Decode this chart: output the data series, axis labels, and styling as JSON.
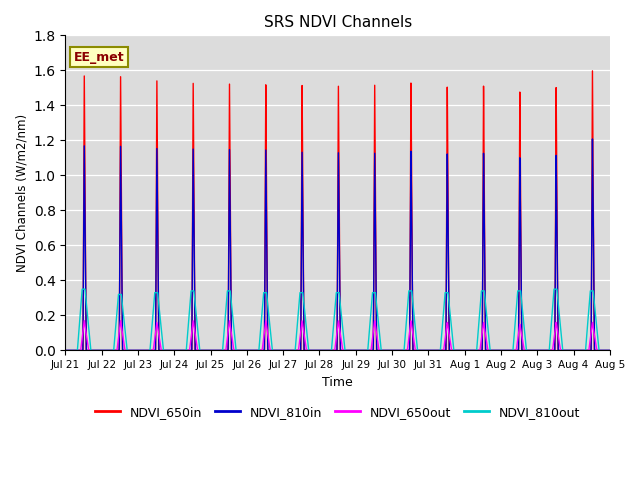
{
  "title": "SRS NDVI Channels",
  "xlabel": "Time",
  "ylabel": "NDVI Channels (W/m2/nm)",
  "ylim": [
    0.0,
    1.8
  ],
  "yticks": [
    0.0,
    0.2,
    0.4,
    0.6,
    0.8,
    1.0,
    1.2,
    1.4,
    1.6,
    1.8
  ],
  "xtick_labels": [
    "Jul 21",
    "Jul 22",
    "Jul 23",
    "Jul 24",
    "Jul 25",
    "Jul 26",
    "Jul 27",
    "Jul 28",
    "Jul 29",
    "Jul 30",
    "Jul 31",
    "Aug 1",
    "Aug 2",
    "Aug 3",
    "Aug 4",
    "Aug 5"
  ],
  "annotation_text": "EE_met",
  "colors": {
    "NDVI_650in": "#FF0000",
    "NDVI_810in": "#0000CC",
    "NDVI_650out": "#FF00FF",
    "NDVI_810out": "#00CCCC"
  },
  "bg_color": "#DCDCDC",
  "peak_650in": [
    1.57,
    1.57,
    1.55,
    1.54,
    1.54,
    1.54,
    1.54,
    1.54,
    1.55,
    1.56,
    1.53,
    1.53,
    1.49,
    1.51,
    1.6
  ],
  "peak_810in": [
    1.17,
    1.17,
    1.16,
    1.16,
    1.16,
    1.16,
    1.15,
    1.15,
    1.15,
    1.16,
    1.14,
    1.14,
    1.11,
    1.12,
    1.21
  ],
  "peak_650out": [
    0.17,
    0.17,
    0.16,
    0.17,
    0.17,
    0.17,
    0.17,
    0.17,
    0.17,
    0.17,
    0.16,
    0.16,
    0.15,
    0.16,
    0.16
  ],
  "peak_810out": [
    0.35,
    0.32,
    0.33,
    0.34,
    0.34,
    0.33,
    0.33,
    0.33,
    0.33,
    0.34,
    0.33,
    0.34,
    0.34,
    0.35,
    0.34
  ],
  "n_days": 15,
  "pts_per_day": 500
}
